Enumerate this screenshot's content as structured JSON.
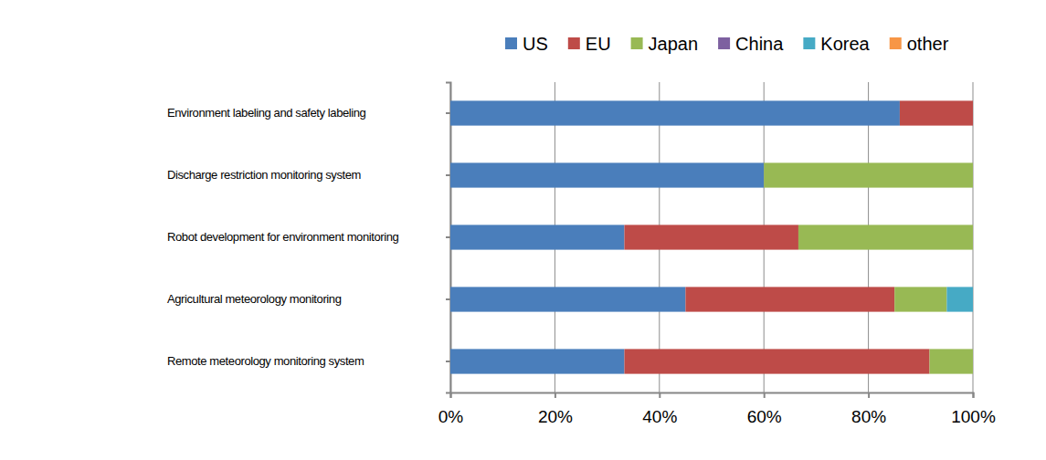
{
  "chart_data": {
    "type": "bar",
    "orientation": "horizontal",
    "stacked": true,
    "grid": true,
    "legend": "top",
    "categories": [
      "Environment labeling and safety labeling",
      "Discharge restriction monitoring system",
      "Robot development  for environment monitoring",
      "Agricultural meteorology monitoring",
      "Remote meteorology monitoring system"
    ],
    "series": [
      {
        "name": "US",
        "color": "#4a7ebb",
        "values": [
          86,
          60,
          33.3,
          45,
          33.3
        ]
      },
      {
        "name": "EU",
        "color": "#be4b48",
        "values": [
          14,
          0,
          33.3,
          40,
          58.4
        ]
      },
      {
        "name": "Japan",
        "color": "#98b954",
        "values": [
          0,
          40,
          33.4,
          10,
          8.3
        ]
      },
      {
        "name": "China",
        "color": "#7d60a0",
        "values": [
          0,
          0,
          0,
          0,
          0
        ]
      },
      {
        "name": "Korea",
        "color": "#46aac5",
        "values": [
          0,
          0,
          0,
          5,
          0
        ]
      },
      {
        "name": "other",
        "color": "#f79646",
        "values": [
          0,
          0,
          0,
          0,
          0
        ]
      }
    ],
    "xlim": [
      0,
      100
    ],
    "xticks": [
      {
        "value": 0,
        "label": "0%"
      },
      {
        "value": 20,
        "label": "20%"
      },
      {
        "value": 40,
        "label": "40%"
      },
      {
        "value": 60,
        "label": "60%"
      },
      {
        "value": 80,
        "label": "80%"
      },
      {
        "value": 100,
        "label": "100%"
      }
    ]
  }
}
